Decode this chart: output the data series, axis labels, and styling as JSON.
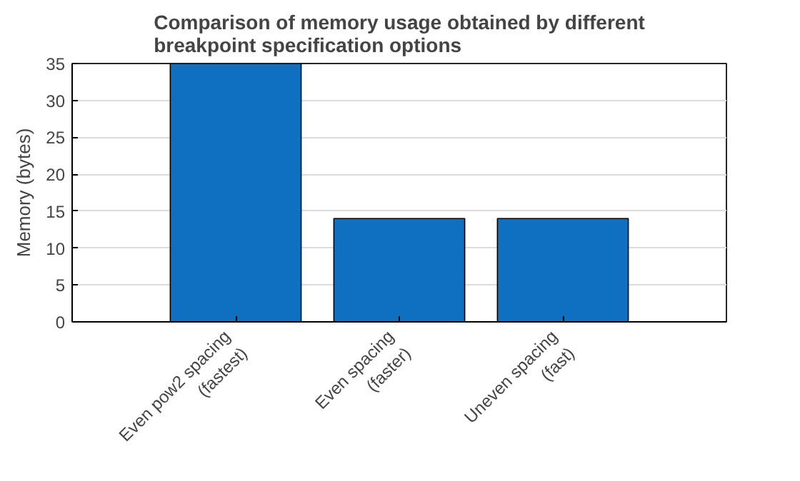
{
  "chart_data": {
    "type": "bar",
    "title": "Comparison of memory usage obtained by different\nbreakpoint specification options",
    "ylabel": "Memory (bytes)",
    "categories": [
      "Even pow2 spacing\n(fastest)",
      "Even spacing\n(faster)",
      "Uneven spacing\n(fast)"
    ],
    "values": [
      35,
      14,
      14
    ],
    "color": "#0f6fc0",
    "ylim": [
      0,
      35
    ],
    "yticks": [
      0,
      5,
      10,
      15,
      20,
      25,
      30,
      35
    ],
    "grid": "y"
  }
}
